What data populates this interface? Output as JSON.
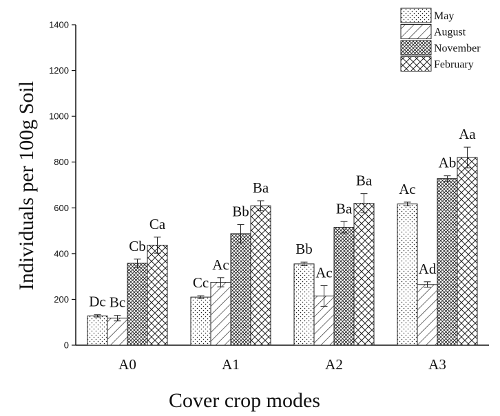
{
  "chart_data": {
    "type": "bar",
    "title": "",
    "xlabel": "Cover  crop modes",
    "ylabel": "Individuals per 100g  Soil",
    "ylim": [
      0,
      1400
    ],
    "yticks": [
      0,
      200,
      400,
      600,
      800,
      1000,
      1200,
      1400
    ],
    "categories": [
      "A0",
      "A1",
      "A2",
      "A3"
    ],
    "legend_position": "top-right",
    "grid": false,
    "series": [
      {
        "name": "May",
        "pattern": "dots",
        "values": [
          128,
          210,
          355,
          617
        ],
        "errors": [
          5,
          6,
          8,
          8
        ],
        "labels": [
          "Dc",
          "Cc",
          "Bb",
          "Ac"
        ]
      },
      {
        "name": "August",
        "pattern": "diagonal-lines",
        "values": [
          118,
          275,
          215,
          265
        ],
        "errors": [
          12,
          20,
          45,
          12
        ],
        "labels": [
          "Bc",
          "Ac",
          "Ac",
          "Ad"
        ]
      },
      {
        "name": "November",
        "pattern": "dense-crosshatch",
        "values": [
          358,
          487,
          515,
          728
        ],
        "errors": [
          18,
          40,
          25,
          12
        ],
        "labels": [
          "Cb",
          "Bb",
          "Ba",
          "Ab"
        ]
      },
      {
        "name": "February",
        "pattern": "wide-crosshatch",
        "values": [
          437,
          609,
          620,
          820
        ],
        "errors": [
          35,
          22,
          42,
          45
        ],
        "labels": [
          "Ca",
          "Ba",
          "Ba",
          "Aa"
        ]
      }
    ]
  }
}
